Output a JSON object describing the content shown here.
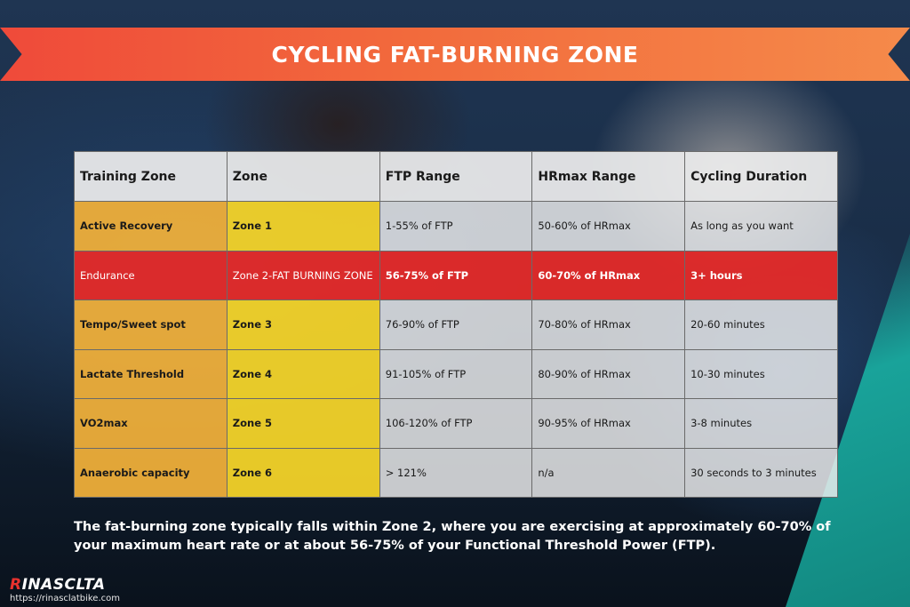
{
  "banner": {
    "title": "CYCLING FAT-BURNING ZONE",
    "colors": {
      "start": "#ef4a3a",
      "end": "#f58a4a"
    }
  },
  "table": {
    "headers": [
      "Training Zone",
      "Zone",
      "FTP Range",
      "HRmax Range",
      "Cycling Duration"
    ],
    "rows": [
      {
        "name": "Active Recovery",
        "zone": "Zone 1",
        "ftp": "1-55% of FTP",
        "hr": "50-60% of HRmax",
        "duration": "As long as you want",
        "highlight": false
      },
      {
        "name": "Endurance",
        "zone": "Zone 2-FAT BURNING ZONE",
        "ftp": "56-75% of FTP",
        "hr": "60-70% of HRmax",
        "duration": "3+ hours",
        "highlight": true
      },
      {
        "name": "Tempo/Sweet spot",
        "zone": "Zone 3",
        "ftp": "76-90% of FTP",
        "hr": "70-80% of HRmax",
        "duration": "20-60 minutes",
        "highlight": false
      },
      {
        "name": "Lactate Threshold",
        "zone": "Zone 4",
        "ftp": "91-105% of FTP",
        "hr": "80-90% of HRmax",
        "duration": "10-30 minutes",
        "highlight": false
      },
      {
        "name": "VO2max",
        "zone": "Zone 5",
        "ftp": "106-120% of FTP",
        "hr": "90-95% of HRmax",
        "duration": "3-8 minutes",
        "highlight": false
      },
      {
        "name": "Anaerobic capacity",
        "zone": "Zone 6",
        "ftp": "> 121%",
        "hr": "n/a",
        "duration": "30 seconds to 3 minutes",
        "highlight": false
      }
    ],
    "colors": {
      "name_cell": "#f4b23a",
      "zone_cell": "#f8d628",
      "highlight_row": "#e82a28"
    }
  },
  "caption": {
    "line1": "The fat-burning zone typically falls within Zone 2, where you are exercising at approximately 60-70% of",
    "line2": "your maximum heart rate or at about 56-75% of your Functional Threshold Power (FTP)."
  },
  "logo": {
    "accent": "R",
    "rest": "INASCLTA",
    "url": "https://rinasclatbike.com"
  }
}
